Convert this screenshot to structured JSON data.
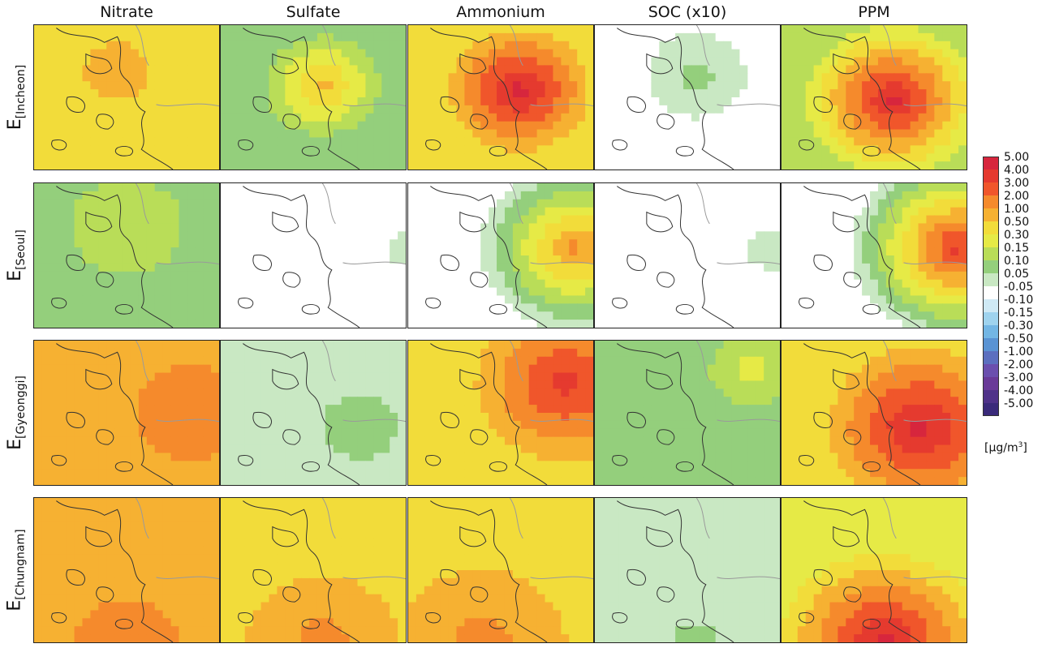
{
  "columns": [
    "Nitrate",
    "Sulfate",
    "Ammonium",
    "SOC (x10)",
    "PPM"
  ],
  "rows": [
    {
      "label_main": "E",
      "label_sub": "[Incheon]"
    },
    {
      "label_main": "E",
      "label_sub": "[Seoul]"
    },
    {
      "label_main": "E",
      "label_sub": "[Gyeonggi]"
    },
    {
      "label_main": "E",
      "label_sub": "[Chungnam]"
    }
  ],
  "colorbar": {
    "labels": [
      "5.00",
      "4.00",
      "3.00",
      "2.00",
      "1.00",
      "0.50",
      "0.30",
      "0.15",
      "0.10",
      "0.05",
      "-0.05",
      "-0.10",
      "-0.15",
      "-0.30",
      "-0.50",
      "-1.00",
      "-2.00",
      "-3.00",
      "-4.00",
      "-5.00"
    ],
    "colors": [
      "#d7263d",
      "#e53a2f",
      "#f0562b",
      "#f58a2c",
      "#f6b132",
      "#f2dc3a",
      "#e6ea46",
      "#b9dd58",
      "#94cf7c",
      "#c9e8c3",
      "#ffffff",
      "#cfe9f5",
      "#9fd3ee",
      "#73b6e4",
      "#5a93d3",
      "#5c6fbf",
      "#6b4fae",
      "#6a3a98",
      "#4f3289",
      "#3a2a7a"
    ],
    "unit_prefix": "[μg/m",
    "unit_sup": "3",
    "unit_suffix": "]"
  },
  "panels": [
    {
      "row": 0,
      "col": 0,
      "field": {
        "bg": 5,
        "centerVal": 4,
        "hot": [
          0.45,
          0.32
        ],
        "spread": 0.35
      }
    },
    {
      "row": 0,
      "col": 1,
      "field": {
        "bg": 8,
        "centerVal": 4,
        "hot": [
          0.55,
          0.42
        ],
        "spread": 0.35
      }
    },
    {
      "row": 0,
      "col": 2,
      "field": {
        "bg": 5,
        "centerVal": 0,
        "hot": [
          0.6,
          0.45
        ],
        "spread": 0.42
      }
    },
    {
      "row": 0,
      "col": 3,
      "field": {
        "bg": 10,
        "centerVal": 8,
        "hot": [
          0.55,
          0.35
        ],
        "spread": 0.35
      }
    },
    {
      "row": 0,
      "col": 4,
      "field": {
        "bg": 7,
        "centerVal": 0,
        "hot": [
          0.6,
          0.52
        ],
        "spread": 0.5
      }
    },
    {
      "row": 1,
      "col": 0,
      "field": {
        "bg": 8,
        "centerVal": 7,
        "hot": [
          0.5,
          0.3
        ],
        "spread": 0.6
      }
    },
    {
      "row": 1,
      "col": 1,
      "field": {
        "bg": 10,
        "centerVal": 9,
        "hot": [
          1.0,
          0.45
        ],
        "spread": 0.2
      }
    },
    {
      "row": 1,
      "col": 2,
      "field": {
        "bg": 10,
        "centerVal": 3,
        "hot": [
          0.9,
          0.45
        ],
        "spread": 0.55
      }
    },
    {
      "row": 1,
      "col": 3,
      "field": {
        "bg": 10,
        "centerVal": 9,
        "hot": [
          0.95,
          0.45
        ],
        "spread": 0.25
      }
    },
    {
      "row": 1,
      "col": 4,
      "field": {
        "bg": 10,
        "centerVal": 1,
        "hot": [
          0.95,
          0.45
        ],
        "spread": 0.6
      }
    },
    {
      "row": 2,
      "col": 0,
      "field": {
        "bg": 4,
        "centerVal": 3,
        "hot": [
          0.85,
          0.5
        ],
        "spread": 0.6
      }
    },
    {
      "row": 2,
      "col": 1,
      "field": {
        "bg": 9,
        "centerVal": 8,
        "hot": [
          0.75,
          0.6
        ],
        "spread": 0.4
      }
    },
    {
      "row": 2,
      "col": 2,
      "field": {
        "bg": 5,
        "centerVal": 1,
        "hot": [
          0.85,
          0.3
        ],
        "spread": 0.55
      }
    },
    {
      "row": 2,
      "col": 3,
      "field": {
        "bg": 8,
        "centerVal": 6,
        "hot": [
          0.85,
          0.2
        ],
        "spread": 0.3
      }
    },
    {
      "row": 2,
      "col": 4,
      "field": {
        "bg": 5,
        "centerVal": 0,
        "hot": [
          0.75,
          0.6
        ],
        "spread": 0.55
      }
    },
    {
      "row": 3,
      "col": 0,
      "field": {
        "bg": 4,
        "centerVal": 3,
        "hot": [
          0.5,
          1.0
        ],
        "spread": 0.55
      }
    },
    {
      "row": 3,
      "col": 1,
      "field": {
        "bg": 5,
        "centerVal": 3,
        "hot": [
          0.55,
          1.0
        ],
        "spread": 0.55
      }
    },
    {
      "row": 3,
      "col": 2,
      "field": {
        "bg": 5,
        "centerVal": 3,
        "hot": [
          0.4,
          1.0
        ],
        "spread": 0.6
      }
    },
    {
      "row": 3,
      "col": 3,
      "field": {
        "bg": 9,
        "centerVal": 8,
        "hot": [
          0.55,
          1.0
        ],
        "spread": 0.25
      }
    },
    {
      "row": 3,
      "col": 4,
      "field": {
        "bg": 6,
        "centerVal": 0,
        "hot": [
          0.55,
          1.0
        ],
        "spread": 0.6
      }
    }
  ]
}
